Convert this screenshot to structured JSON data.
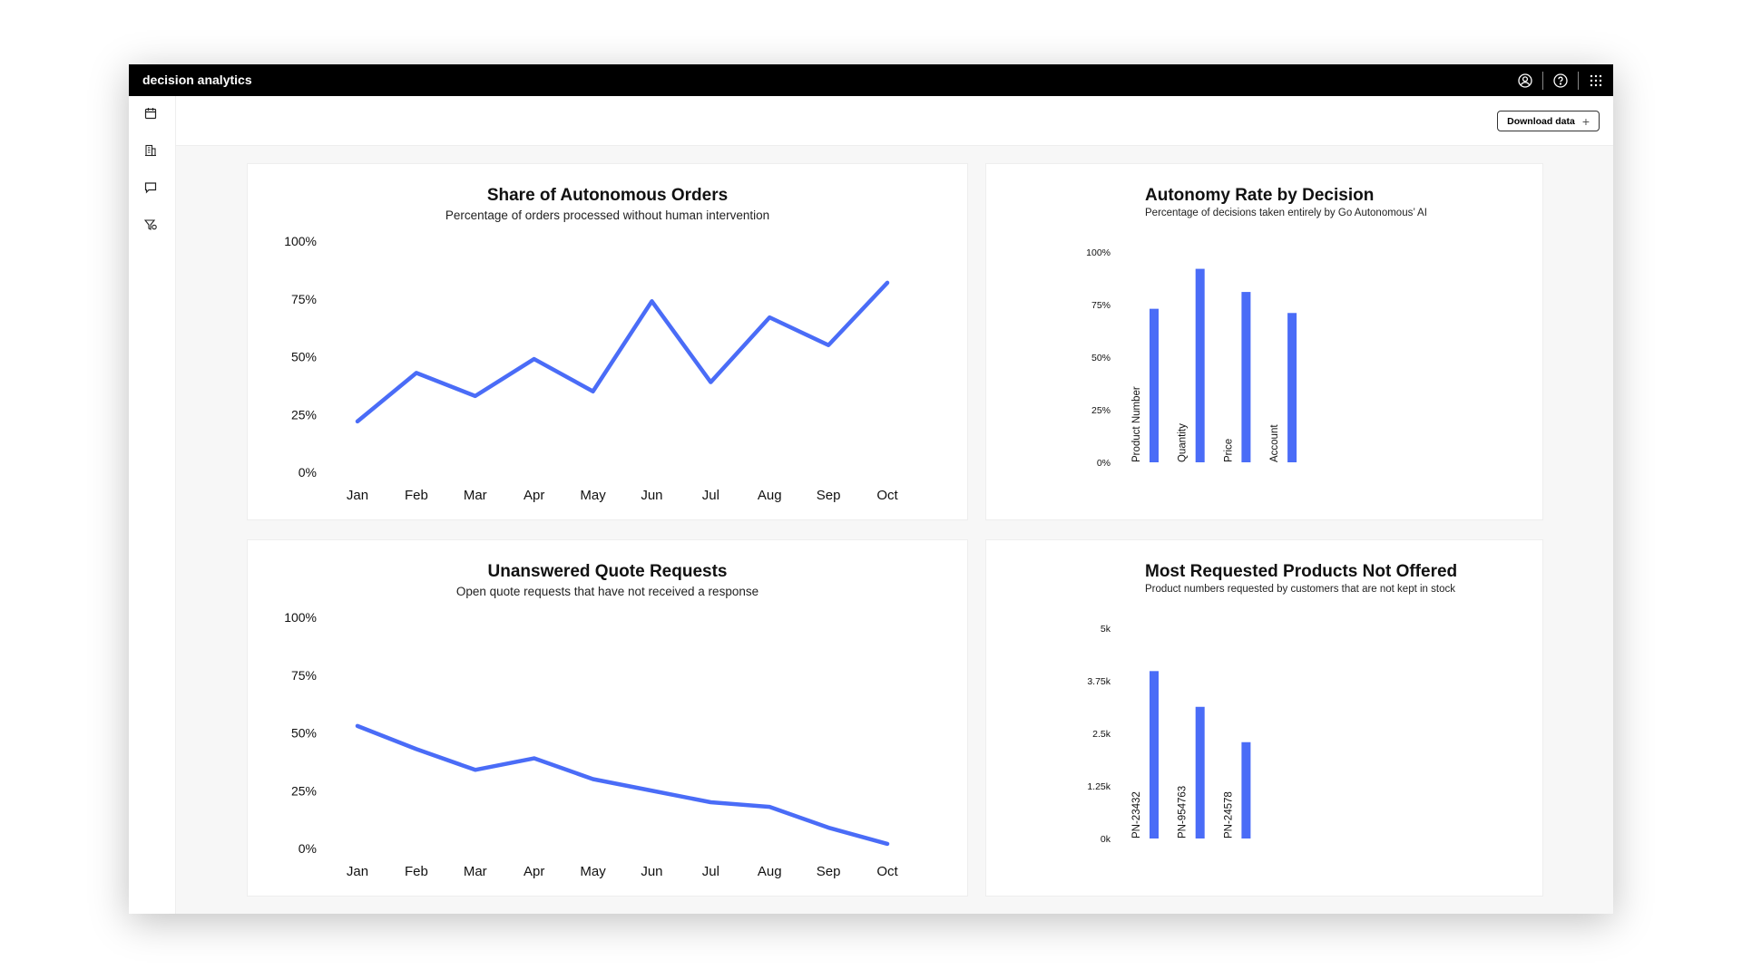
{
  "app": {
    "title": "decision analytics",
    "icons": [
      "user-circle-icon",
      "help-icon",
      "apps-grid-icon"
    ]
  },
  "sidebar": {
    "icons": [
      "calendar-icon",
      "building-icon",
      "chat-icon",
      "filter-settings-icon"
    ]
  },
  "toolbar": {
    "download_label": "Download data",
    "download_icon": "plus-icon"
  },
  "colors": {
    "accent": "#4a6cf7",
    "header": "#000000",
    "background": "#f7f7f7"
  },
  "chart_data": [
    {
      "type": "line",
      "title": "Share of Autonomous Orders",
      "subtitle": "Percentage of orders processed without human intervention",
      "categories": [
        "Jan",
        "Feb",
        "Mar",
        "Apr",
        "May",
        "Jun",
        "Jul",
        "Aug",
        "Sep",
        "Oct"
      ],
      "values": [
        22,
        43,
        33,
        49,
        35,
        74,
        39,
        67,
        55,
        82
      ],
      "yticks": [
        "0%",
        "25%",
        "50%",
        "75%",
        "100%"
      ],
      "ylim": [
        0,
        100
      ],
      "grid": false
    },
    {
      "type": "bar",
      "title": "Autonomy Rate by Decision",
      "subtitle": "Percentage of decisions taken entirely by Go Autonomous’ AI",
      "categories": [
        "Product Number",
        "Quantity",
        "Price",
        "Account"
      ],
      "values": [
        73,
        92,
        81,
        71
      ],
      "yticks": [
        "0%",
        "25%",
        "50%",
        "75%",
        "100%"
      ],
      "ylim": [
        0,
        100
      ],
      "grid": false
    },
    {
      "type": "line",
      "title": "Unanswered Quote Requests",
      "subtitle": "Open quote requests that have not received a response",
      "categories": [
        "Jan",
        "Feb",
        "Mar",
        "Apr",
        "May",
        "Jun",
        "Jul",
        "Aug",
        "Sep",
        "Oct"
      ],
      "values": [
        53,
        43,
        34,
        39,
        30,
        25,
        20,
        18,
        9,
        2
      ],
      "yticks": [
        "0%",
        "25%",
        "50%",
        "75%",
        "100%"
      ],
      "ylim": [
        0,
        100
      ],
      "grid": false
    },
    {
      "type": "bar",
      "title": "Most Requested Products Not Offered",
      "subtitle": "Product numbers requested by customers that are not kept in stock",
      "categories": [
        "PN-23432",
        "PN-954763",
        "PN-24578"
      ],
      "values": [
        3980,
        3130,
        2290
      ],
      "yticks": [
        "0k",
        "1.25k",
        "2.5k",
        "3.75k",
        "5k"
      ],
      "ylim": [
        0,
        5000
      ],
      "grid": false
    }
  ]
}
